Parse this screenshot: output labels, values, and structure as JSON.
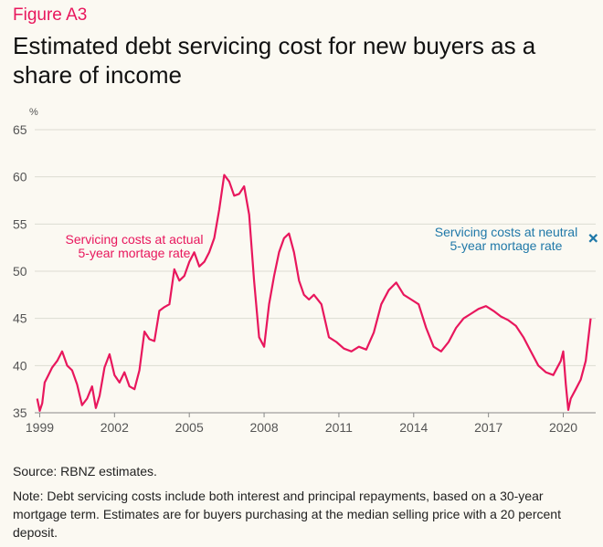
{
  "figure_label": "Figure A3",
  "title": "Estimated debt servicing cost for new buyers as a share of income",
  "source": "Source: RBNZ estimates.",
  "note": "Note: Debt servicing costs include both interest and principal repayments, based on a 30-year mortgage term. Estimates are for buyers purchasing at the median selling price with a 20 percent deposit.",
  "colors": {
    "actual": "#e8175d",
    "neutral": "#1f78a8",
    "grid": "#dcdcd2",
    "axis": "#888888"
  },
  "chart_data": {
    "type": "line",
    "title": "Estimated debt servicing cost for new buyers as a share of income",
    "xlabel": "",
    "ylabel": "%",
    "ylim": [
      35,
      65
    ],
    "yticks": [
      35,
      40,
      45,
      50,
      55,
      60,
      65
    ],
    "xlim": [
      1998.8,
      2021.3
    ],
    "xticks": [
      1999,
      2002,
      2005,
      2008,
      2011,
      2014,
      2017,
      2020
    ],
    "xtick_labels": [
      "1999",
      "2002",
      "2005",
      "2008",
      "2011",
      "2014",
      "2017",
      "2020"
    ],
    "series": [
      {
        "name": "Servicing costs at actual 5-year mortage rate",
        "label_lines": [
          "Servicing costs at actual",
          "5-year mortage rate"
        ],
        "x": [
          1998.9,
          1999.0,
          1999.1,
          1999.2,
          1999.35,
          1999.5,
          1999.7,
          1999.9,
          2000.1,
          2000.3,
          2000.5,
          2000.7,
          2000.9,
          2001.1,
          2001.25,
          2001.4,
          2001.6,
          2001.8,
          2002.0,
          2002.2,
          2002.4,
          2002.6,
          2002.8,
          2003.0,
          2003.2,
          2003.4,
          2003.6,
          2003.8,
          2004.0,
          2004.2,
          2004.4,
          2004.6,
          2004.8,
          2005.0,
          2005.2,
          2005.4,
          2005.6,
          2005.8,
          2006.0,
          2006.2,
          2006.4,
          2006.6,
          2006.8,
          2007.0,
          2007.2,
          2007.4,
          2007.6,
          2007.8,
          2008.0,
          2008.2,
          2008.4,
          2008.6,
          2008.8,
          2009.0,
          2009.2,
          2009.4,
          2009.6,
          2009.8,
          2010.0,
          2010.3,
          2010.6,
          2010.9,
          2011.2,
          2011.5,
          2011.8,
          2012.1,
          2012.4,
          2012.7,
          2013.0,
          2013.3,
          2013.6,
          2013.9,
          2014.2,
          2014.5,
          2014.8,
          2015.1,
          2015.4,
          2015.7,
          2016.0,
          2016.3,
          2016.6,
          2016.9,
          2017.2,
          2017.5,
          2017.8,
          2018.1,
          2018.4,
          2018.7,
          2019.0,
          2019.3,
          2019.6,
          2019.9,
          2020.0,
          2020.1,
          2020.2,
          2020.3,
          2020.5,
          2020.7,
          2020.9,
          2021.1
        ],
        "values": [
          36.5,
          35.2,
          36.0,
          38.2,
          39.0,
          39.8,
          40.5,
          41.5,
          40.0,
          39.5,
          38.0,
          35.8,
          36.5,
          37.8,
          35.5,
          36.8,
          39.8,
          41.2,
          39.0,
          38.2,
          39.3,
          37.8,
          37.5,
          39.5,
          43.6,
          42.8,
          42.6,
          45.8,
          46.2,
          46.5,
          50.2,
          49.0,
          49.5,
          51.0,
          52.0,
          50.5,
          51.0,
          52.0,
          53.5,
          56.5,
          60.2,
          59.5,
          58.0,
          58.2,
          59.0,
          56.0,
          49.0,
          43.0,
          42.0,
          46.5,
          49.5,
          52.0,
          53.5,
          54.0,
          52.0,
          49.0,
          47.5,
          47.0,
          47.5,
          46.5,
          43.0,
          42.5,
          41.8,
          41.5,
          42.0,
          41.7,
          43.5,
          46.5,
          48.0,
          48.8,
          47.5,
          47.0,
          46.5,
          44.0,
          42.0,
          41.5,
          42.5,
          44.0,
          45.0,
          45.5,
          46.0,
          46.3,
          45.8,
          45.2,
          44.8,
          44.2,
          43.0,
          41.5,
          40.0,
          39.3,
          39.0,
          40.5,
          41.5,
          38.0,
          35.3,
          36.5,
          37.5,
          38.5,
          40.5,
          45.0
        ]
      },
      {
        "name": "Servicing costs at neutral 5-year mortage rate",
        "label_lines": [
          "Servicing costs at neutral",
          "5-year mortage rate"
        ],
        "x": [
          2021.2
        ],
        "values": [
          53.5
        ],
        "marker": "x"
      }
    ]
  }
}
